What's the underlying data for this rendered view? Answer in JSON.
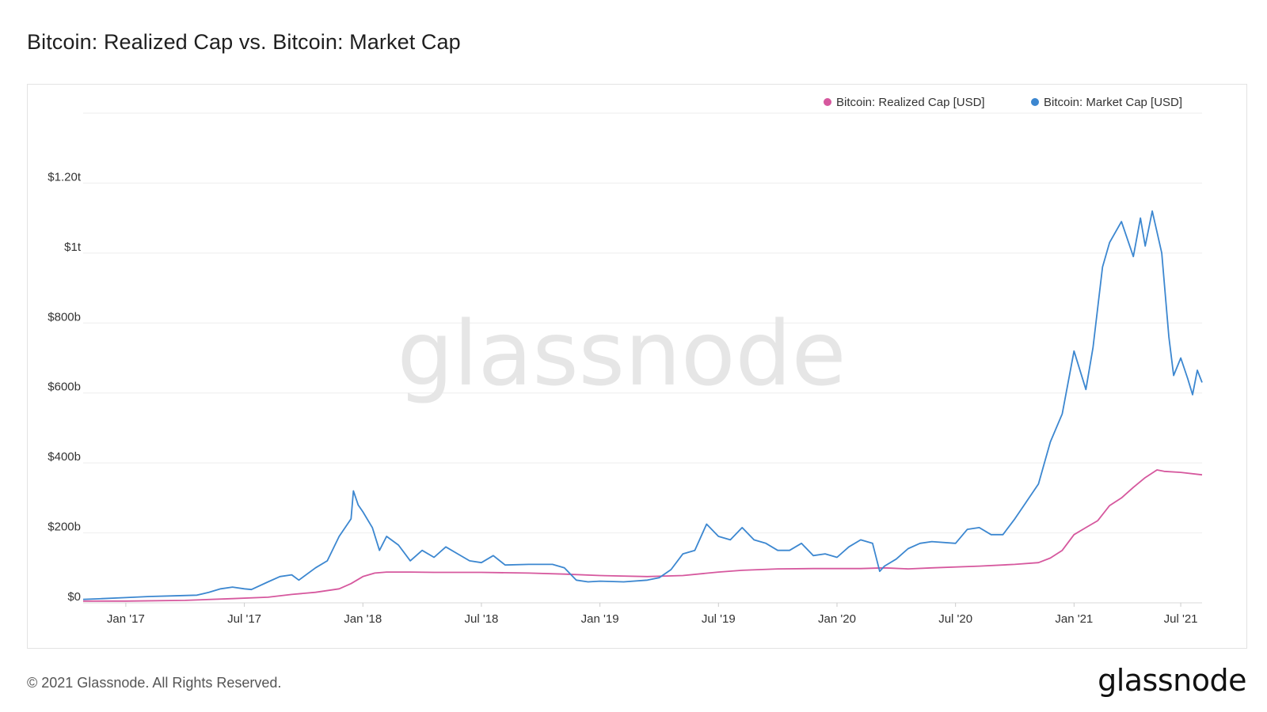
{
  "title": "Bitcoin: Realized Cap vs. Bitcoin: Market Cap",
  "footer": {
    "copyright": "© 2021 Glassnode. All Rights Reserved.",
    "brand": "glassnode"
  },
  "watermark": "glassnode",
  "chart_data": {
    "type": "line",
    "title": "Bitcoin: Realized Cap vs. Bitcoin: Market Cap",
    "xlabel": "",
    "ylabel": "",
    "legend_position": "top-right",
    "grid": true,
    "xlim": [
      2016.82,
      2021.54
    ],
    "ylim": [
      0,
      1400
    ],
    "y_unit": "billions USD",
    "yticks": [
      {
        "value": 0,
        "label": "$0"
      },
      {
        "value": 200,
        "label": "$200b"
      },
      {
        "value": 400,
        "label": "$400b"
      },
      {
        "value": 600,
        "label": "$600b"
      },
      {
        "value": 800,
        "label": "$800b"
      },
      {
        "value": 1000,
        "label": "$1t"
      },
      {
        "value": 1200,
        "label": "$1.20t"
      }
    ],
    "xticks": [
      {
        "value": 2017.0,
        "label": "Jan '17"
      },
      {
        "value": 2017.5,
        "label": "Jul '17"
      },
      {
        "value": 2018.0,
        "label": "Jan '18"
      },
      {
        "value": 2018.5,
        "label": "Jul '18"
      },
      {
        "value": 2019.0,
        "label": "Jan '19"
      },
      {
        "value": 2019.5,
        "label": "Jul '19"
      },
      {
        "value": 2020.0,
        "label": "Jan '20"
      },
      {
        "value": 2020.5,
        "label": "Jul '20"
      },
      {
        "value": 2021.0,
        "label": "Jan '21"
      },
      {
        "value": 2021.45,
        "label": "Jul '21"
      }
    ],
    "series": [
      {
        "name": "Bitcoin: Realized Cap [USD]",
        "color": "#d6589e",
        "points": [
          [
            2016.82,
            5
          ],
          [
            2017.0,
            5
          ],
          [
            2017.25,
            7
          ],
          [
            2017.45,
            12
          ],
          [
            2017.6,
            16
          ],
          [
            2017.7,
            24
          ],
          [
            2017.8,
            30
          ],
          [
            2017.9,
            40
          ],
          [
            2017.95,
            55
          ],
          [
            2018.0,
            75
          ],
          [
            2018.05,
            85
          ],
          [
            2018.1,
            88
          ],
          [
            2018.2,
            88
          ],
          [
            2018.3,
            87
          ],
          [
            2018.5,
            87
          ],
          [
            2018.7,
            85
          ],
          [
            2018.85,
            82
          ],
          [
            2019.0,
            78
          ],
          [
            2019.2,
            75
          ],
          [
            2019.35,
            78
          ],
          [
            2019.5,
            88
          ],
          [
            2019.6,
            93
          ],
          [
            2019.75,
            97
          ],
          [
            2019.9,
            98
          ],
          [
            2020.1,
            98
          ],
          [
            2020.2,
            100
          ],
          [
            2020.3,
            97
          ],
          [
            2020.4,
            100
          ],
          [
            2020.6,
            105
          ],
          [
            2020.75,
            110
          ],
          [
            2020.85,
            115
          ],
          [
            2020.9,
            128
          ],
          [
            2020.95,
            150
          ],
          [
            2021.0,
            195
          ],
          [
            2021.05,
            215
          ],
          [
            2021.1,
            235
          ],
          [
            2021.15,
            278
          ],
          [
            2021.2,
            300
          ],
          [
            2021.25,
            330
          ],
          [
            2021.3,
            358
          ],
          [
            2021.35,
            380
          ],
          [
            2021.38,
            376
          ],
          [
            2021.45,
            373
          ],
          [
            2021.54,
            366
          ]
        ]
      },
      {
        "name": "Bitcoin: Market Cap [USD]",
        "color": "#3c87d0",
        "points": [
          [
            2016.82,
            10
          ],
          [
            2016.9,
            12
          ],
          [
            2017.0,
            15
          ],
          [
            2017.1,
            18
          ],
          [
            2017.2,
            20
          ],
          [
            2017.3,
            22
          ],
          [
            2017.35,
            30
          ],
          [
            2017.4,
            40
          ],
          [
            2017.45,
            45
          ],
          [
            2017.5,
            40
          ],
          [
            2017.53,
            38
          ],
          [
            2017.6,
            60
          ],
          [
            2017.65,
            75
          ],
          [
            2017.7,
            80
          ],
          [
            2017.73,
            65
          ],
          [
            2017.8,
            100
          ],
          [
            2017.85,
            120
          ],
          [
            2017.9,
            190
          ],
          [
            2017.95,
            240
          ],
          [
            2017.96,
            320
          ],
          [
            2017.98,
            280
          ],
          [
            2018.0,
            260
          ],
          [
            2018.04,
            215
          ],
          [
            2018.07,
            150
          ],
          [
            2018.1,
            190
          ],
          [
            2018.15,
            165
          ],
          [
            2018.2,
            120
          ],
          [
            2018.25,
            150
          ],
          [
            2018.3,
            130
          ],
          [
            2018.35,
            160
          ],
          [
            2018.4,
            140
          ],
          [
            2018.45,
            120
          ],
          [
            2018.5,
            115
          ],
          [
            2018.55,
            135
          ],
          [
            2018.6,
            108
          ],
          [
            2018.7,
            110
          ],
          [
            2018.8,
            110
          ],
          [
            2018.85,
            100
          ],
          [
            2018.9,
            65
          ],
          [
            2018.95,
            60
          ],
          [
            2019.0,
            62
          ],
          [
            2019.1,
            60
          ],
          [
            2019.2,
            65
          ],
          [
            2019.25,
            72
          ],
          [
            2019.3,
            95
          ],
          [
            2019.35,
            140
          ],
          [
            2019.4,
            150
          ],
          [
            2019.45,
            225
          ],
          [
            2019.5,
            190
          ],
          [
            2019.55,
            180
          ],
          [
            2019.6,
            215
          ],
          [
            2019.65,
            180
          ],
          [
            2019.7,
            170
          ],
          [
            2019.75,
            150
          ],
          [
            2019.8,
            150
          ],
          [
            2019.85,
            170
          ],
          [
            2019.9,
            135
          ],
          [
            2019.95,
            140
          ],
          [
            2020.0,
            130
          ],
          [
            2020.05,
            160
          ],
          [
            2020.1,
            180
          ],
          [
            2020.15,
            170
          ],
          [
            2020.18,
            90
          ],
          [
            2020.2,
            105
          ],
          [
            2020.25,
            125
          ],
          [
            2020.3,
            155
          ],
          [
            2020.35,
            170
          ],
          [
            2020.4,
            175
          ],
          [
            2020.5,
            170
          ],
          [
            2020.55,
            210
          ],
          [
            2020.6,
            215
          ],
          [
            2020.65,
            195
          ],
          [
            2020.7,
            195
          ],
          [
            2020.75,
            240
          ],
          [
            2020.8,
            290
          ],
          [
            2020.85,
            340
          ],
          [
            2020.9,
            460
          ],
          [
            2020.95,
            540
          ],
          [
            2021.0,
            720
          ],
          [
            2021.05,
            610
          ],
          [
            2021.08,
            730
          ],
          [
            2021.12,
            960
          ],
          [
            2021.15,
            1030
          ],
          [
            2021.2,
            1090
          ],
          [
            2021.25,
            990
          ],
          [
            2021.28,
            1100
          ],
          [
            2021.3,
            1020
          ],
          [
            2021.33,
            1120
          ],
          [
            2021.35,
            1060
          ],
          [
            2021.37,
            1000
          ],
          [
            2021.4,
            760
          ],
          [
            2021.42,
            650
          ],
          [
            2021.45,
            700
          ],
          [
            2021.48,
            640
          ],
          [
            2021.5,
            595
          ],
          [
            2021.52,
            665
          ],
          [
            2021.54,
            630
          ]
        ]
      }
    ]
  }
}
